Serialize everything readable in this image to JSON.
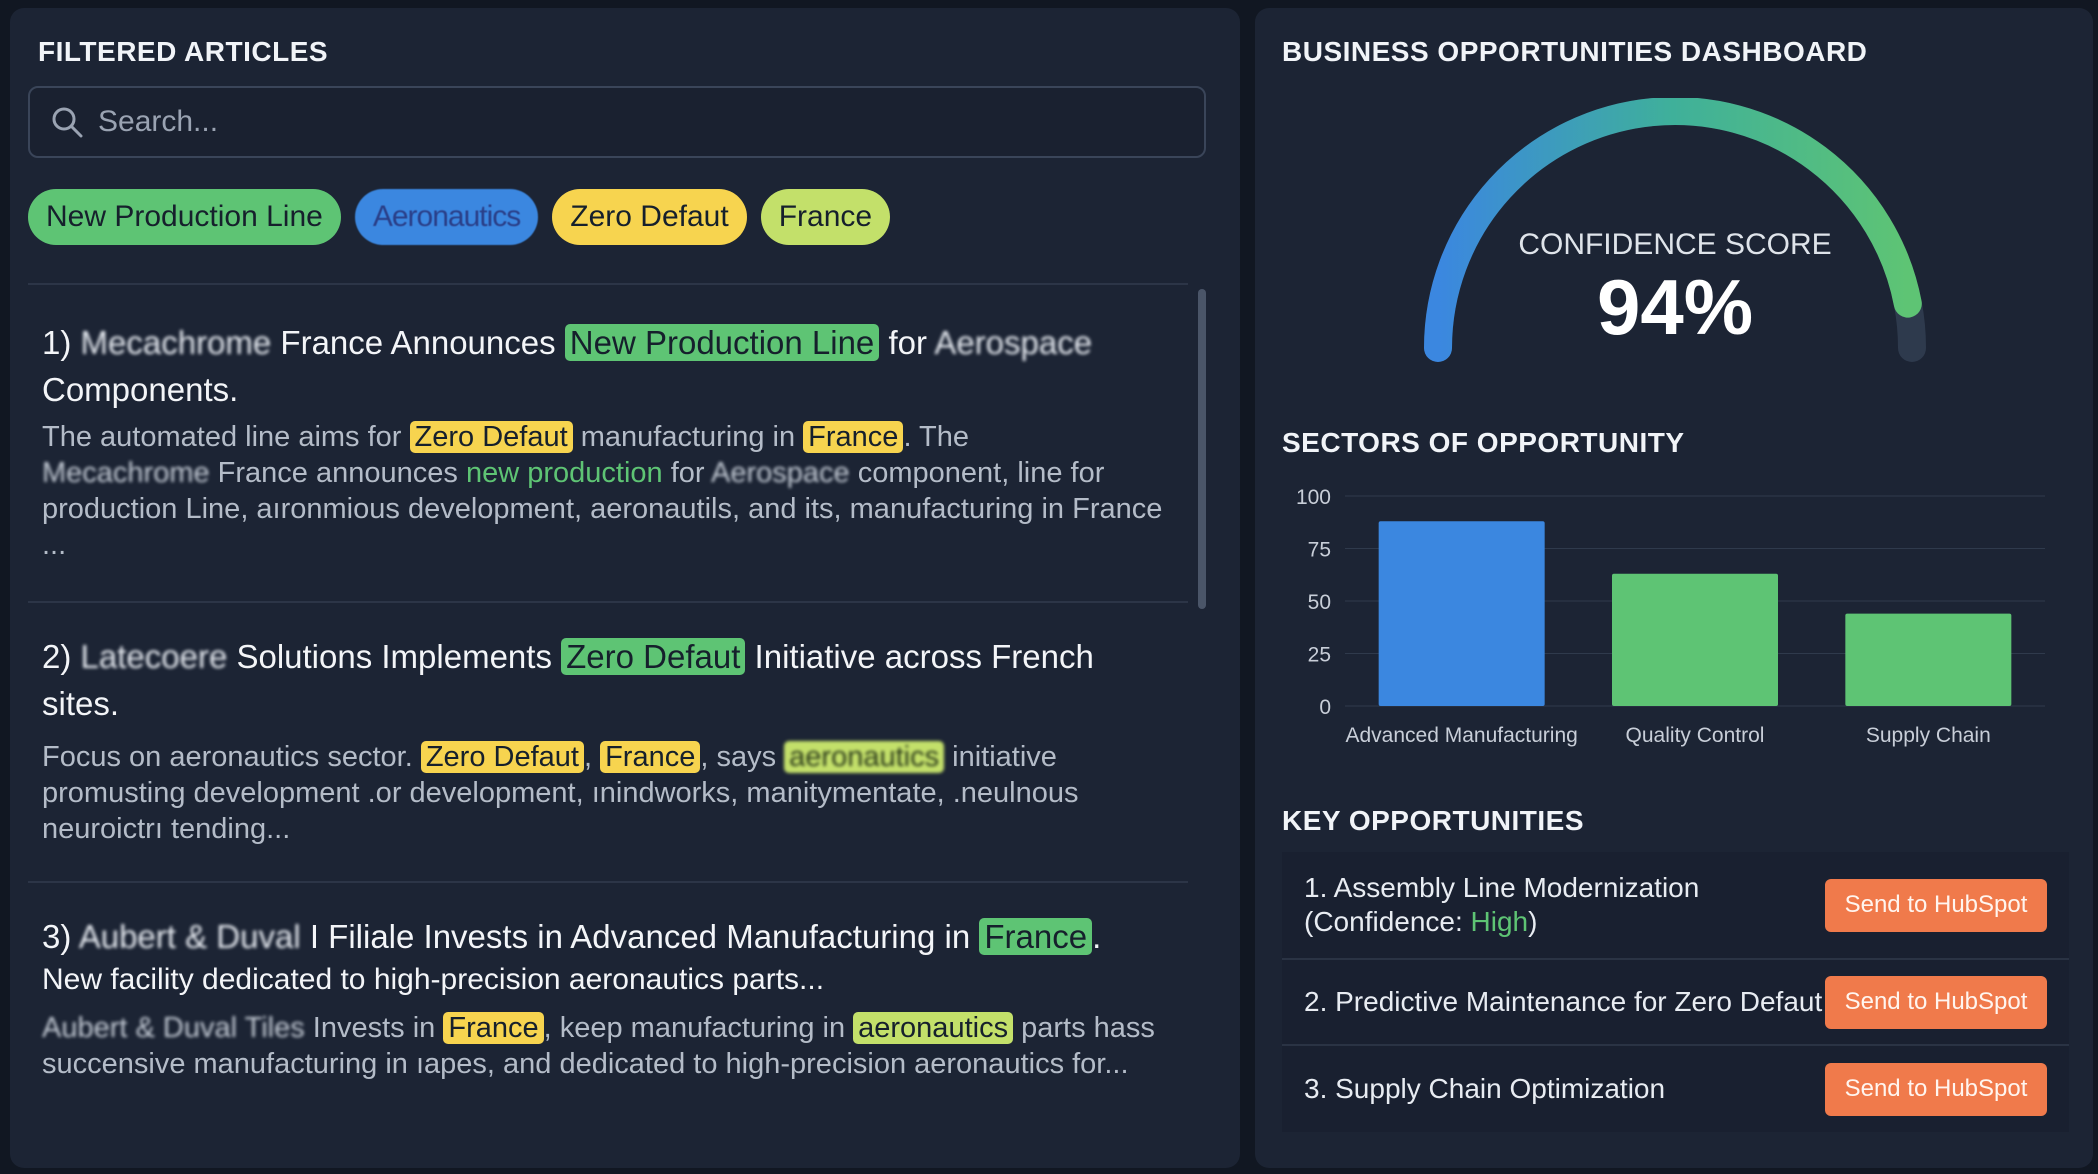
{
  "left_panel": {
    "title": "FILTERED ARTICLES",
    "search_placeholder": "Search...",
    "filters": [
      {
        "label": "New Production Line",
        "color": "#5ec474"
      },
      {
        "label": "Aeronautics",
        "color": "#3b87e0"
      },
      {
        "label": "Zero Defaut",
        "color": "#f7d44f"
      },
      {
        "label": "France",
        "color": "#c3e06a"
      }
    ],
    "articles": [
      {
        "t1": "1) ",
        "t2": "Mecachrome",
        "t3": " France Announces ",
        "t4": "New Production Line",
        "t5": " for ",
        "t6": "Aerospace",
        "t7": " Components.",
        "b1": "The automated line aims for ",
        "b2": "Zero Defaut",
        "b3": " manufacturing in ",
        "b4": "France",
        "b5": ". The ",
        "b6": "Mecachrome",
        "b7": " France announces ",
        "b8": "new production",
        "b9": "  for ",
        "b10": "Aerospace",
        "b11": " component, line for production Line, aıronmious development, aeronautils, and its, manufacturing in France ..."
      },
      {
        "t1": "2) ",
        "t2": "Latecoere",
        "t3": " Solutions Implements ",
        "t4": "Zero Defaut",
        "t5": " Initiative across French sites.",
        "b1": "Focus on aeronautics sector. ",
        "b2": "Zero Defaut",
        "b3": ", ",
        "b4": "France",
        "b5": ", says ",
        "b6": "aeronautics",
        "b7": "  initiative promusting development .or development, ınindworks, manitymentate, .neulnous neuroictrı tending..."
      },
      {
        "t1": "3) ",
        "t2": "Aubert & Duval",
        "t3": " I Filiale Invests in Advanced Manufacturing in ",
        "t4": "France",
        "t5": ".",
        "t6": "New facility dedicated to high-precision aeronautics parts...",
        "b1": "Aubert & Duval Tiles",
        "b2": " Invests in ",
        "b3": "France",
        "b4": ", keep manufacturing in ",
        "b5": "aeronautics",
        "b6": " parts hass succensive manufacturing in ıapes, and dedicated to high-precision aeronautics for..."
      }
    ]
  },
  "right_panel": {
    "title": "BUSINESS OPPORTUNITIES DASHBOARD",
    "confidence": {
      "label": "CONFIDENCE SCORE",
      "display": "94%",
      "value": 94
    },
    "sectors_title": "SECTORS OF OPPORTUNITY",
    "key_title": "KEY OPPORTUNITIES",
    "opportunities": [
      {
        "text": "1. Assembly Line Modernization",
        "conf_prefix": "(Confidence: ",
        "conf_value": "High",
        "conf_suffix": ")",
        "button": "Send to HubSpot"
      },
      {
        "text": "2. Predictive Maintenance for Zero Defaut",
        "button": "Send to HubSpot"
      },
      {
        "text": "3. Supply Chain Optimization",
        "button": "Send to HubSpot"
      }
    ]
  },
  "colors": {
    "accent_blue": "#3b87e0",
    "accent_green": "#5ec474",
    "accent_yellow": "#f7d44f",
    "hubspot_orange": "#f07a4b"
  },
  "chart_data": {
    "type": "bar",
    "categories": [
      "Advanced Manufacturing",
      "Quality Control",
      "Supply Chain"
    ],
    "values": [
      88,
      63,
      44
    ],
    "ylim": [
      0,
      100
    ],
    "yticks": [
      "0",
      "25",
      "50",
      "75",
      "100"
    ],
    "colors": [
      "#3b87e0",
      "#5ec474",
      "#5ec474"
    ],
    "grid": true
  }
}
